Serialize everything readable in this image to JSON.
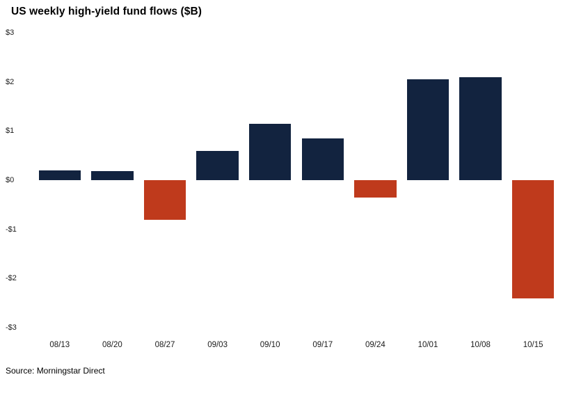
{
  "title": "US weekly high-yield fund flows ($B)",
  "source": "Source: Morningstar Direct",
  "colors": {
    "positive": "#12233f",
    "negative": "#bf3a1c",
    "background": "#ffffff"
  },
  "chart_data": {
    "type": "bar",
    "title": "US weekly high-yield fund flows ($B)",
    "categories": [
      "08/13",
      "08/20",
      "08/27",
      "09/03",
      "09/10",
      "09/17",
      "09/24",
      "10/01",
      "10/08",
      "10/15"
    ],
    "values": [
      0.2,
      0.18,
      -0.8,
      0.6,
      1.15,
      0.85,
      -0.35,
      2.05,
      2.1,
      -2.4
    ],
    "xlabel": "",
    "ylabel": "",
    "ylim": [
      -3,
      3
    ],
    "y_ticks": [
      "$3",
      "$2",
      "$1",
      "$0",
      "-$1",
      "-$2",
      "-$3"
    ],
    "grid": false,
    "legend": "none",
    "bar_color_rule": "positive values navy, negative values brick red"
  }
}
